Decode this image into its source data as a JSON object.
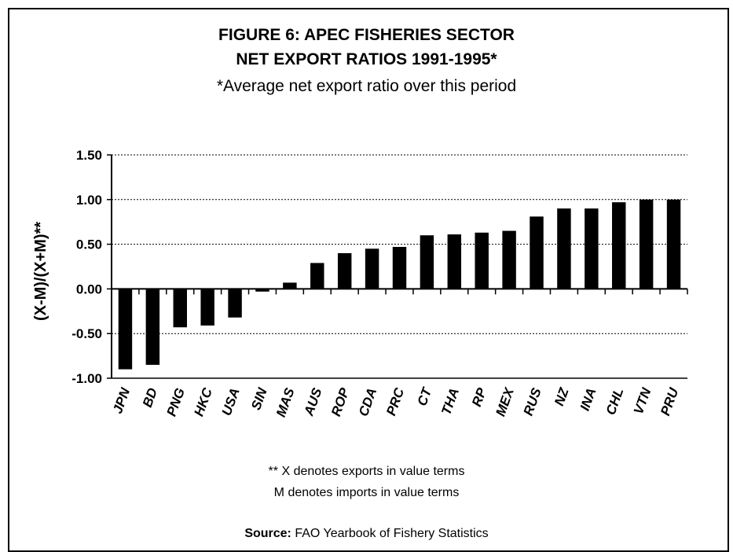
{
  "figure": {
    "title_line1": "FIGURE 6: APEC FISHERIES SECTOR",
    "title_line2": "NET EXPORT RATIOS 1991-1995*",
    "subtitle": "*Average net export ratio over this period",
    "note_line1": "** X denotes exports in value terms",
    "note_line2": "M denotes imports in value terms",
    "source_label": "Source:",
    "source_text": " FAO Yearbook of Fishery Statistics"
  },
  "chart_data": {
    "type": "bar",
    "title": "FIGURE 6: APEC FISHERIES SECTOR NET EXPORT RATIOS 1991-1995*",
    "ylabel": "(X-M)/(X+M)**",
    "xlabel": "",
    "ylim": [
      -1.0,
      1.5
    ],
    "yticks": [
      -1.0,
      -0.5,
      0.0,
      0.5,
      1.0,
      1.5
    ],
    "ytick_labels": [
      "-1.00",
      "-0.50",
      "0.00",
      "0.50",
      "1.00",
      "1.50"
    ],
    "grid": "horizontal dotted",
    "categories": [
      "JPN",
      "BD",
      "PNG",
      "HKC",
      "USA",
      "SIN",
      "MAS",
      "AUS",
      "ROP",
      "CDA",
      "PRC",
      "CT",
      "THA",
      "RP",
      "MEX",
      "RUS",
      "NZ",
      "INA",
      "CHL",
      "VTN",
      "PRU"
    ],
    "values": [
      -0.9,
      -0.85,
      -0.43,
      -0.41,
      -0.32,
      -0.03,
      0.07,
      0.29,
      0.4,
      0.45,
      0.47,
      0.6,
      0.61,
      0.63,
      0.65,
      0.81,
      0.9,
      0.9,
      0.97,
      1.0,
      1.0
    ],
    "bar_color": "#000000"
  }
}
